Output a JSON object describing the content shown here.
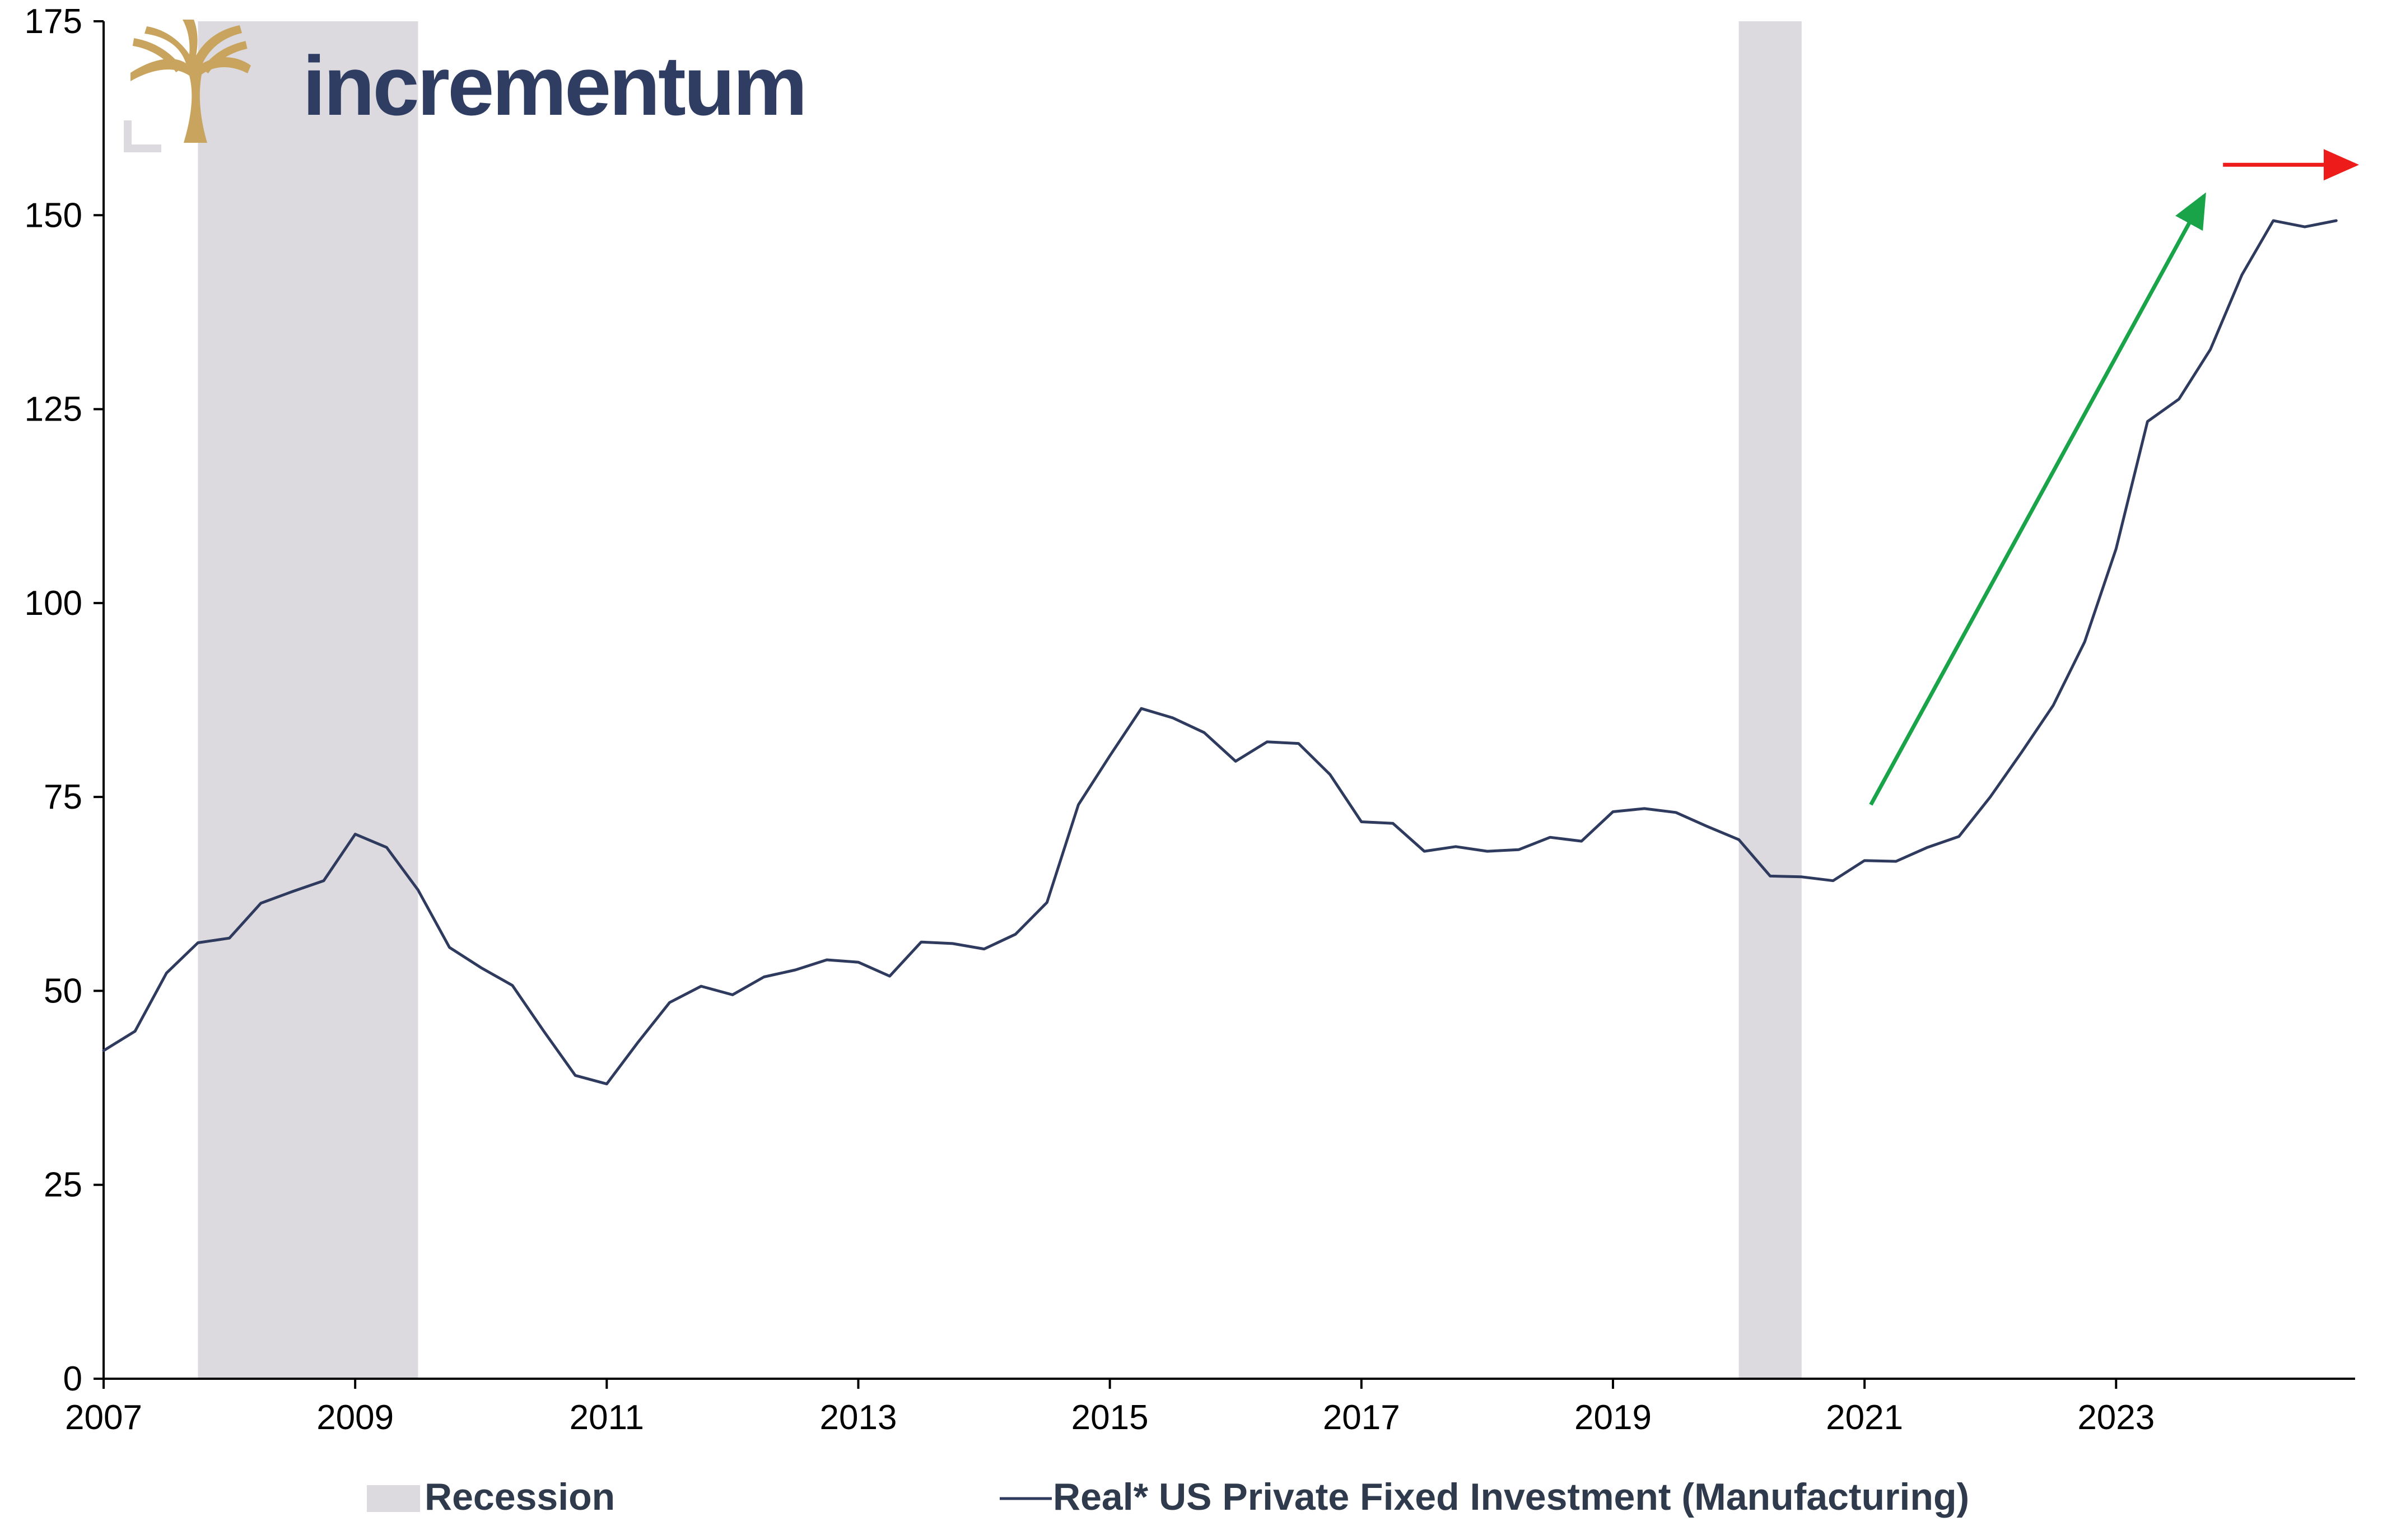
{
  "brand": {
    "name": "incrementum",
    "logo_icon": "tree-icon"
  },
  "colors": {
    "series_line": "#2f3b5e",
    "recession_band": "#dcdadf",
    "up_arrow": "#1aa44a",
    "flat_arrow": "#ee1b1b",
    "brand_text": "#2f3d63",
    "brand_gold": "#c8a45e"
  },
  "chart_data": {
    "type": "line",
    "xlim": [
      2007.0,
      2024.9
    ],
    "ylim": [
      0,
      175
    ],
    "yticks": [
      0,
      25,
      50,
      75,
      100,
      125,
      150,
      175
    ],
    "xticks": [
      2007,
      2009,
      2011,
      2013,
      2015,
      2017,
      2019,
      2021,
      2023
    ],
    "grid": false,
    "legend_position": "bottom",
    "recessions": [
      {
        "start": 2007.75,
        "end": 2009.5
      },
      {
        "start": 2020.0,
        "end": 2020.5
      }
    ],
    "series": [
      {
        "name": "Real* US Private Fixed Investment (Manufacturing)",
        "x": [
          2007.0,
          2007.25,
          2007.5,
          2007.75,
          2008.0,
          2008.25,
          2008.5,
          2008.75,
          2009.0,
          2009.25,
          2009.5,
          2009.75,
          2010.0,
          2010.25,
          2010.5,
          2010.75,
          2011.0,
          2011.25,
          2011.5,
          2011.75,
          2012.0,
          2012.25,
          2012.5,
          2012.75,
          2013.0,
          2013.25,
          2013.5,
          2013.75,
          2014.0,
          2014.25,
          2014.5,
          2014.75,
          2015.0,
          2015.25,
          2015.5,
          2015.75,
          2016.0,
          2016.25,
          2016.5,
          2016.75,
          2017.0,
          2017.25,
          2017.5,
          2017.75,
          2018.0,
          2018.25,
          2018.5,
          2018.75,
          2019.0,
          2019.25,
          2019.5,
          2019.75,
          2020.0,
          2020.25,
          2020.5,
          2020.75,
          2021.0,
          2021.25,
          2021.5,
          2021.75,
          2022.0,
          2022.25,
          2022.5,
          2022.75,
          2023.0,
          2023.25,
          2023.5,
          2023.75,
          2024.0,
          2024.25,
          2024.5,
          2024.75
        ],
        "values": [
          42.3,
          44.8,
          52.3,
          56.2,
          56.8,
          61.3,
          62.8,
          64.2,
          70.2,
          68.5,
          63.0,
          55.6,
          53.0,
          50.7,
          44.8,
          39.1,
          38.0,
          43.4,
          48.5,
          50.6,
          49.5,
          51.8,
          52.7,
          54.0,
          53.7,
          51.9,
          56.3,
          56.1,
          55.4,
          57.3,
          61.4,
          74.0,
          80.3,
          86.4,
          85.2,
          83.3,
          79.6,
          82.1,
          81.9,
          77.9,
          71.8,
          71.6,
          68.0,
          68.6,
          68.0,
          68.2,
          69.8,
          69.3,
          73.1,
          73.5,
          73.0,
          71.2,
          69.5,
          64.8,
          64.7,
          64.2,
          66.8,
          66.7,
          68.5,
          69.9,
          75.0,
          80.8,
          86.8,
          95.0,
          107.0,
          123.4,
          126.3,
          132.7,
          142.3,
          149.3,
          148.5,
          149.3
        ]
      }
    ],
    "legend": [
      {
        "label": "Recession",
        "kind": "area"
      },
      {
        "label": "Real* US Private Fixed Investment (Manufacturing)",
        "kind": "line"
      }
    ],
    "annotations": [
      {
        "kind": "arrow",
        "color_key": "up_arrow",
        "from": [
          2021.05,
          74.0
        ],
        "to": [
          2023.7,
          152.5
        ]
      },
      {
        "kind": "arrow",
        "color_key": "flat_arrow",
        "from": [
          2023.85,
          156.5
        ],
        "to": [
          2024.9,
          156.5
        ]
      }
    ]
  }
}
